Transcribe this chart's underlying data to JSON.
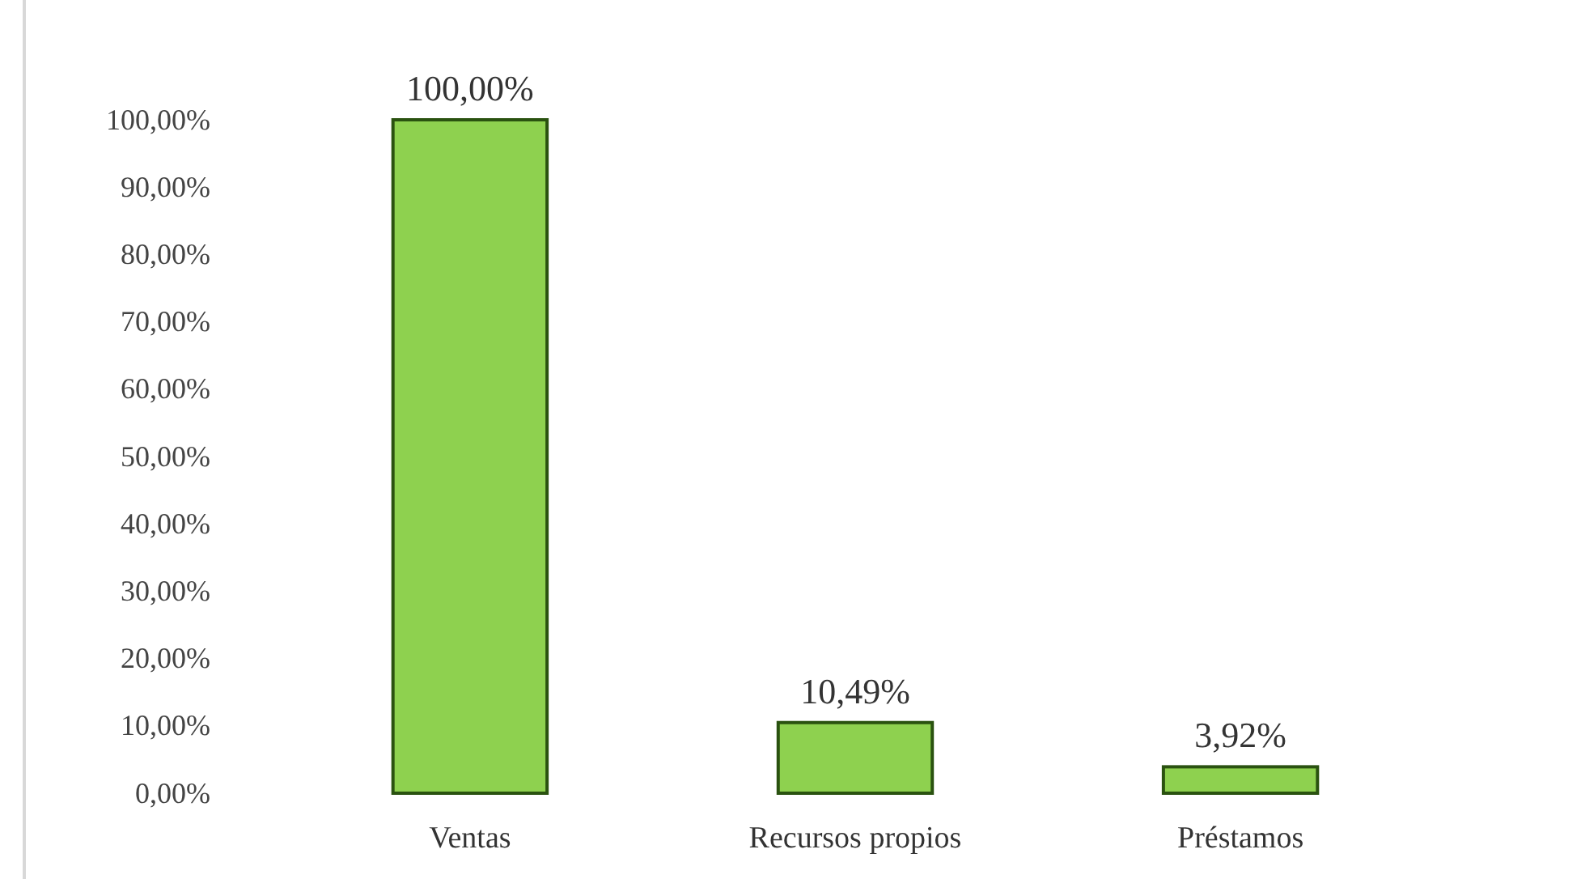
{
  "chart_data": {
    "type": "bar",
    "categories": [
      "Ventas",
      "Recursos propios",
      "Préstamos"
    ],
    "values": [
      100,
      10.49,
      3.92
    ],
    "value_labels": [
      "100,00%",
      "10,49%",
      "3,92%"
    ],
    "color": "#8ed14f",
    "ylim": [
      0,
      100
    ],
    "yticks": [
      {
        "value": 0,
        "label": "0,00%"
      },
      {
        "value": 10,
        "label": "10,00%"
      },
      {
        "value": 20,
        "label": "20,00%"
      },
      {
        "value": 30,
        "label": "30,00%"
      },
      {
        "value": 40,
        "label": "40,00%"
      },
      {
        "value": 50,
        "label": "50,00%"
      },
      {
        "value": 60,
        "label": "60,00%"
      },
      {
        "value": 70,
        "label": "70,00%"
      },
      {
        "value": 80,
        "label": "80,00%"
      },
      {
        "value": 90,
        "label": "90,00%"
      },
      {
        "value": 100,
        "label": "100,00%"
      }
    ],
    "grid": false
  }
}
